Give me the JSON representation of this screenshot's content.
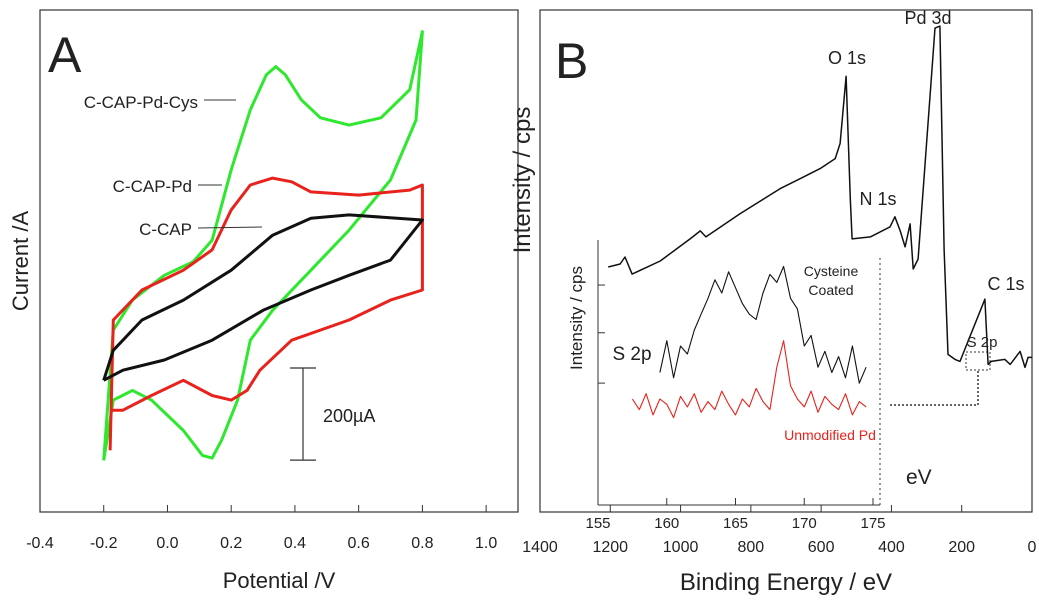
{
  "chart_data": [
    {
      "type": "line",
      "panel": "A",
      "xlabel": "Potential /V",
      "ylabel": "Current /A",
      "xlim": [
        -0.4,
        1.1
      ],
      "xticks": [
        -0.4,
        -0.2,
        {
          "value": 0,
          "label": "0.0"
        },
        0.2,
        0.4,
        0.6,
        0.8,
        {
          "value": 1,
          "label": "1.0"
        }
      ],
      "ylim": [
        -460,
        630
      ],
      "scale_bar": {
        "value": 200,
        "label": "200µA"
      },
      "series": [
        {
          "name": "C-CAP-Pd-Cys",
          "color": "#2ee82e",
          "x": [
            -0.2,
            -0.17,
            -0.11,
            -0.01,
            0.08,
            0.14,
            0.2,
            0.26,
            0.31,
            0.34,
            0.37,
            0.42,
            0.48,
            0.57,
            0.67,
            0.76,
            0.8,
            0.78,
            0.7,
            0.57,
            0.45,
            0.33,
            0.26,
            0.22,
            0.17,
            0.14,
            0.11,
            0.05,
            -0.05,
            -0.11,
            -0.17,
            -0.2
          ],
          "values": [
            -348,
            -65,
            0,
            54,
            83,
            130,
            283,
            413,
            489,
            507,
            489,
            435,
            396,
            380,
            396,
            457,
            583,
            391,
            261,
            152,
            65,
            -22,
            -87,
            -217,
            -304,
            -343,
            -337,
            -283,
            -217,
            -196,
            -217,
            -348
          ]
        },
        {
          "name": "C-CAP-Pd",
          "color": "#e8221c",
          "x": [
            -0.18,
            -0.17,
            -0.08,
            0.05,
            0.14,
            0.2,
            0.26,
            0.33,
            0.39,
            0.45,
            0.6,
            0.76,
            0.8,
            0.8,
            0.7,
            0.57,
            0.39,
            0.29,
            0.25,
            0.2,
            0.14,
            0.05,
            -0.05,
            -0.14,
            -0.18
          ],
          "values": [
            -326,
            -43,
            22,
            65,
            109,
            196,
            250,
            265,
            257,
            235,
            228,
            239,
            250,
            22,
            0,
            -43,
            -87,
            -152,
            -196,
            -217,
            -207,
            -174,
            -207,
            -239,
            -239
          ]
        },
        {
          "name": "C-CAP",
          "color": "#111111",
          "x": [
            -0.2,
            -0.17,
            -0.08,
            0.05,
            0.2,
            0.33,
            0.45,
            0.57,
            0.8,
            0.7,
            0.57,
            0.45,
            0.3,
            0.14,
            -0.01,
            -0.14,
            -0.2
          ],
          "values": [
            -174,
            -109,
            -43,
            0,
            65,
            141,
            178,
            185,
            174,
            87,
            54,
            22,
            -22,
            -87,
            -130,
            -152,
            -174
          ]
        }
      ]
    },
    {
      "type": "line",
      "panel": "B",
      "xlabel": "Binding Energy / eV",
      "ylabel": "Intensity / cps",
      "xlim": [
        1400,
        0
      ],
      "xticks": [
        1400,
        1200,
        1000,
        800,
        600,
        400,
        200,
        0
      ],
      "ylim": [
        0,
        100
      ],
      "annotations": [
        "O 1s",
        "Pd 3d",
        "N 1s",
        "C 1s",
        "S 2p"
      ],
      "series": [
        {
          "color": "#111111",
          "x": [
            1206,
            1172,
            1158,
            1138,
            1058,
            973,
            944,
            928,
            831,
            717,
            660,
            603,
            560,
            546,
            529,
            517,
            512,
            460,
            404,
            390,
            375,
            361,
            347,
            338,
            324,
            276,
            262,
            250,
            239,
            219,
            205,
            134,
            125,
            116,
            77,
            62,
            34,
            20,
            11,
            0
          ],
          "values": [
            48.8,
            49.4,
            50.8,
            47.4,
            50,
            54.4,
            56,
            54.8,
            59.4,
            64.4,
            66.4,
            68.4,
            70.4,
            73.4,
            86.8,
            62.4,
            54.4,
            54.8,
            56.8,
            58.8,
            56,
            52.8,
            57.4,
            48.4,
            50.4,
            96.4,
            96.8,
            52.4,
            31.4,
            30.4,
            30,
            42.4,
            29.4,
            30,
            30.4,
            29.4,
            32,
            28.8,
            30.8,
            30.8
          ]
        }
      ],
      "inset": {
        "xlabel": "eV",
        "ylabel": "Intensity / cps",
        "annotation": "S 2p",
        "xlim": [
          155,
          175
        ],
        "xticks": [
          155,
          160,
          165,
          170,
          175
        ],
        "ylim": [
          0,
          100
        ],
        "yticks": [
          46,
          65,
          83
        ],
        "series": [
          {
            "name": "Cysteine Coated",
            "color": "#111111",
            "x": [
              159.5,
              160,
              160.5,
              161,
              161.5,
              162,
              162.5,
              163,
              163.5,
              164,
              164.5,
              165,
              165.5,
              166,
              166.5,
              167,
              167.5,
              168,
              168.5,
              169,
              169.5,
              170,
              170.5,
              171,
              171.5,
              172,
              172.5,
              173,
              173.5,
              174,
              174.5
            ],
            "values": [
              50,
              62,
              48,
              60,
              57,
              66,
              72,
              78,
              85,
              80,
              88,
              82,
              76,
              72,
              70,
              80,
              87,
              84,
              90,
              78,
              74,
              60,
              64,
              52,
              58,
              50,
              56,
              48,
              60,
              46,
              52
            ]
          },
          {
            "name": "Unmodified Pd",
            "color": "#e8221c",
            "x": [
              157.5,
              158,
              158.5,
              159,
              159.5,
              160,
              160.5,
              161,
              161.5,
              162,
              162.5,
              163,
              163.5,
              164,
              164.5,
              165,
              165.5,
              166,
              166.5,
              167,
              167.5,
              168,
              168.5,
              169,
              169.5,
              170,
              170.5,
              171,
              171.5,
              172,
              172.5,
              173,
              173.5,
              174,
              174.5
            ],
            "values": [
              40,
              36,
              42,
              34,
              40,
              38,
              33,
              41,
              37,
              42,
              35,
              39,
              36,
              43,
              38,
              34,
              40,
              37,
              44,
              39,
              36,
              52,
              62,
              45,
              40,
              37,
              43,
              35,
              41,
              38,
              36,
              42,
              34,
              39,
              37
            ]
          }
        ]
      }
    }
  ]
}
